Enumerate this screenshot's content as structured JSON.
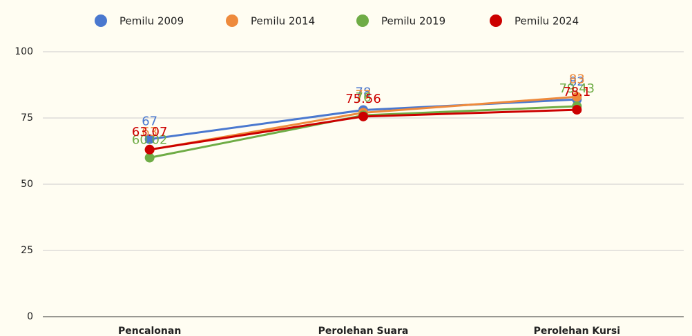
{
  "chart_data": {
    "type": "line",
    "categories": [
      "Pencalonan",
      "Perolehan Suara",
      "Perolehan Kursi"
    ],
    "series": [
      {
        "name": "Pemilu 2009",
        "color": "#4a78cf",
        "values": [
          67,
          78,
          82
        ]
      },
      {
        "name": "Pemilu 2014",
        "color": "#ee8a3c",
        "values": [
          63,
          77,
          83
        ]
      },
      {
        "name": "Pemilu 2019",
        "color": "#6fac46",
        "values": [
          60.02,
          76,
          79.43
        ]
      },
      {
        "name": "Pemilu 2024",
        "color": "#cc0000",
        "values": [
          63.07,
          75.56,
          78.1
        ]
      }
    ],
    "ylim": [
      0,
      100
    ],
    "yticks": [
      0,
      25,
      50,
      75,
      100
    ],
    "grid": true,
    "legend": "top"
  }
}
